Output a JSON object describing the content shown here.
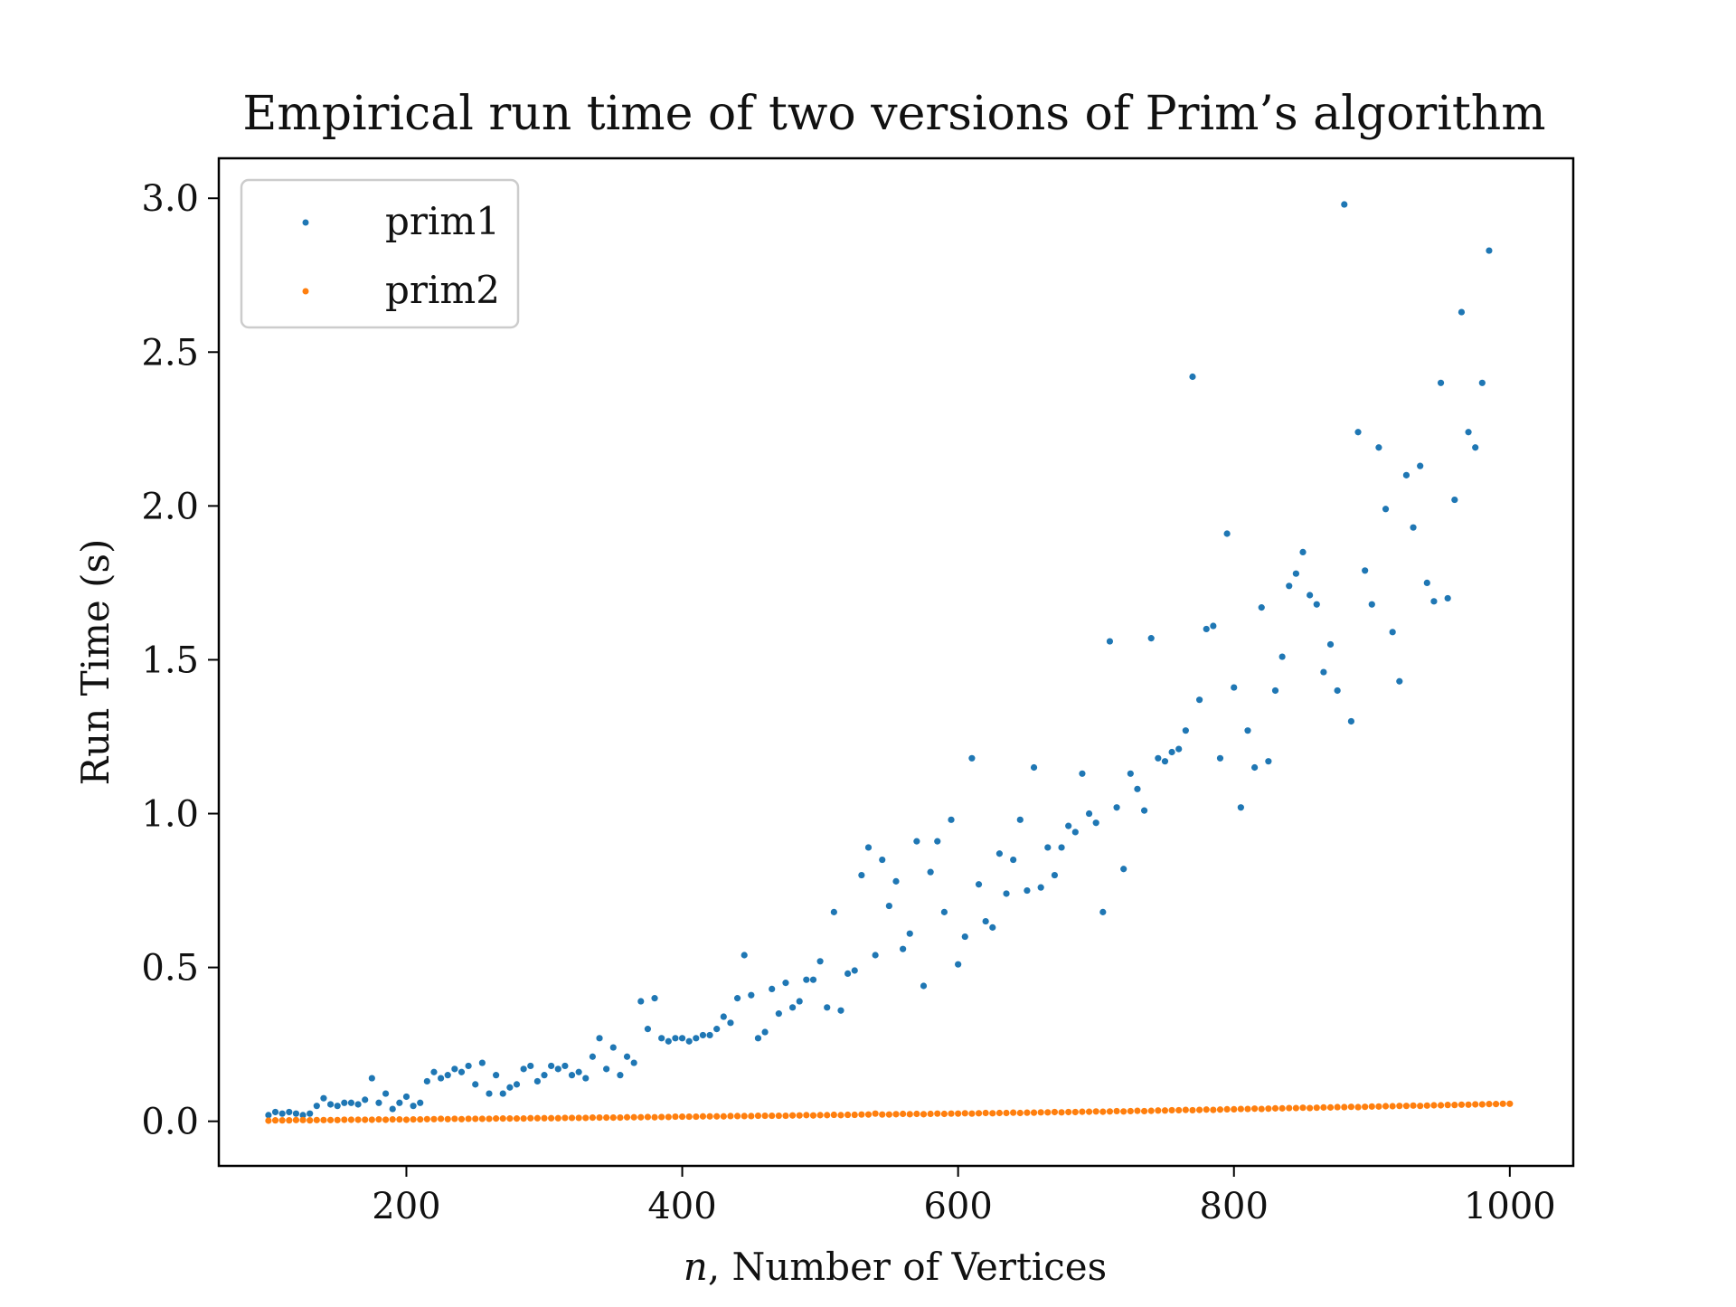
{
  "chart_data": {
    "type": "scatter",
    "title": "Empirical run time of two versions of Prim’s algorithm",
    "xlabel_var": "n",
    "xlabel_rest": ", Number of Vertices",
    "ylabel": "Run Time (s)",
    "xlim": [
      64,
      1046
    ],
    "ylim": [
      -0.145,
      3.13
    ],
    "xticks": [
      200,
      400,
      600,
      800,
      1000
    ],
    "xtick_labels": [
      "200",
      "400",
      "600",
      "800",
      "1000"
    ],
    "yticks": [
      0.0,
      0.5,
      1.0,
      1.5,
      2.0,
      2.5,
      3.0
    ],
    "ytick_labels": [
      "0.0",
      "0.5",
      "1.0",
      "1.5",
      "2.0",
      "2.5",
      "3.0"
    ],
    "grid": false,
    "legend_position": "top-left",
    "series": [
      {
        "name": "prim1",
        "color": "#1f77b4",
        "points": [
          [
            100,
            0.02
          ],
          [
            105,
            0.03
          ],
          [
            110,
            0.025
          ],
          [
            115,
            0.03
          ],
          [
            120,
            0.025
          ],
          [
            125,
            0.02
          ],
          [
            130,
            0.025
          ],
          [
            135,
            0.05
          ],
          [
            140,
            0.075
          ],
          [
            145,
            0.055
          ],
          [
            150,
            0.05
          ],
          [
            155,
            0.06
          ],
          [
            160,
            0.06
          ],
          [
            165,
            0.055
          ],
          [
            170,
            0.07
          ],
          [
            175,
            0.14
          ],
          [
            180,
            0.06
          ],
          [
            185,
            0.09
          ],
          [
            190,
            0.04
          ],
          [
            195,
            0.06
          ],
          [
            200,
            0.08
          ],
          [
            205,
            0.05
          ],
          [
            210,
            0.06
          ],
          [
            215,
            0.13
          ],
          [
            220,
            0.16
          ],
          [
            225,
            0.14
          ],
          [
            230,
            0.15
          ],
          [
            235,
            0.17
          ],
          [
            240,
            0.16
          ],
          [
            245,
            0.18
          ],
          [
            250,
            0.12
          ],
          [
            255,
            0.19
          ],
          [
            260,
            0.09
          ],
          [
            265,
            0.15
          ],
          [
            270,
            0.09
          ],
          [
            275,
            0.11
          ],
          [
            280,
            0.12
          ],
          [
            285,
            0.17
          ],
          [
            290,
            0.18
          ],
          [
            295,
            0.13
          ],
          [
            300,
            0.15
          ],
          [
            305,
            0.18
          ],
          [
            310,
            0.17
          ],
          [
            315,
            0.18
          ],
          [
            320,
            0.15
          ],
          [
            325,
            0.16
          ],
          [
            330,
            0.14
          ],
          [
            335,
            0.21
          ],
          [
            340,
            0.27
          ],
          [
            345,
            0.17
          ],
          [
            350,
            0.24
          ],
          [
            355,
            0.15
          ],
          [
            360,
            0.21
          ],
          [
            365,
            0.19
          ],
          [
            370,
            0.39
          ],
          [
            375,
            0.3
          ],
          [
            380,
            0.4
          ],
          [
            385,
            0.27
          ],
          [
            390,
            0.26
          ],
          [
            395,
            0.27
          ],
          [
            400,
            0.27
          ],
          [
            405,
            0.26
          ],
          [
            410,
            0.27
          ],
          [
            415,
            0.28
          ],
          [
            420,
            0.28
          ],
          [
            425,
            0.3
          ],
          [
            430,
            0.34
          ],
          [
            435,
            0.32
          ],
          [
            440,
            0.4
          ],
          [
            445,
            0.54
          ],
          [
            450,
            0.41
          ],
          [
            455,
            0.27
          ],
          [
            460,
            0.29
          ],
          [
            465,
            0.43
          ],
          [
            470,
            0.35
          ],
          [
            475,
            0.45
          ],
          [
            480,
            0.37
          ],
          [
            485,
            0.39
          ],
          [
            490,
            0.46
          ],
          [
            495,
            0.46
          ],
          [
            500,
            0.52
          ],
          [
            505,
            0.37
          ],
          [
            510,
            0.68
          ],
          [
            515,
            0.36
          ],
          [
            520,
            0.48
          ],
          [
            525,
            0.49
          ],
          [
            530,
            0.8
          ],
          [
            535,
            0.89
          ],
          [
            540,
            0.54
          ],
          [
            545,
            0.85
          ],
          [
            550,
            0.7
          ],
          [
            555,
            0.78
          ],
          [
            560,
            0.56
          ],
          [
            565,
            0.61
          ],
          [
            570,
            0.91
          ],
          [
            575,
            0.44
          ],
          [
            580,
            0.81
          ],
          [
            585,
            0.91
          ],
          [
            590,
            0.68
          ],
          [
            595,
            0.98
          ],
          [
            600,
            0.51
          ],
          [
            605,
            0.6
          ],
          [
            610,
            1.18
          ],
          [
            615,
            0.77
          ],
          [
            620,
            0.65
          ],
          [
            625,
            0.63
          ],
          [
            630,
            0.87
          ],
          [
            635,
            0.74
          ],
          [
            640,
            0.85
          ],
          [
            645,
            0.98
          ],
          [
            650,
            0.75
          ],
          [
            655,
            1.15
          ],
          [
            660,
            0.76
          ],
          [
            665,
            0.89
          ],
          [
            670,
            0.8
          ],
          [
            675,
            0.89
          ],
          [
            680,
            0.96
          ],
          [
            685,
            0.94
          ],
          [
            690,
            1.13
          ],
          [
            695,
            1.0
          ],
          [
            700,
            0.97
          ],
          [
            705,
            0.68
          ],
          [
            710,
            1.56
          ],
          [
            715,
            1.02
          ],
          [
            720,
            0.82
          ],
          [
            725,
            1.13
          ],
          [
            730,
            1.08
          ],
          [
            735,
            1.01
          ],
          [
            740,
            1.57
          ],
          [
            745,
            1.18
          ],
          [
            750,
            1.17
          ],
          [
            755,
            1.2
          ],
          [
            760,
            1.21
          ],
          [
            765,
            1.27
          ],
          [
            770,
            2.42
          ],
          [
            775,
            1.37
          ],
          [
            780,
            1.6
          ],
          [
            785,
            1.61
          ],
          [
            790,
            1.18
          ],
          [
            795,
            1.91
          ],
          [
            800,
            1.41
          ],
          [
            805,
            1.02
          ],
          [
            810,
            1.27
          ],
          [
            815,
            1.15
          ],
          [
            820,
            1.67
          ],
          [
            825,
            1.17
          ],
          [
            830,
            1.4
          ],
          [
            835,
            1.51
          ],
          [
            840,
            1.74
          ],
          [
            845,
            1.78
          ],
          [
            850,
            1.85
          ],
          [
            855,
            1.71
          ],
          [
            860,
            1.68
          ],
          [
            865,
            1.46
          ],
          [
            870,
            1.55
          ],
          [
            875,
            1.4
          ],
          [
            880,
            2.98
          ],
          [
            885,
            1.3
          ],
          [
            890,
            2.24
          ],
          [
            895,
            1.79
          ],
          [
            900,
            1.68
          ],
          [
            905,
            2.19
          ],
          [
            910,
            1.99
          ],
          [
            915,
            1.59
          ],
          [
            920,
            1.43
          ],
          [
            925,
            2.1
          ],
          [
            930,
            1.93
          ],
          [
            935,
            2.13
          ],
          [
            940,
            1.75
          ],
          [
            945,
            1.69
          ],
          [
            950,
            2.4
          ],
          [
            955,
            1.7
          ],
          [
            960,
            2.02
          ],
          [
            965,
            2.63
          ],
          [
            970,
            2.24
          ],
          [
            975,
            2.19
          ],
          [
            980,
            2.4
          ],
          [
            985,
            2.83
          ]
        ]
      },
      {
        "name": "prim2",
        "color": "#ff7f0e",
        "points_from": 100,
        "points_step": 5,
        "values": [
          0.002,
          0.003,
          0.003,
          0.003,
          0.004,
          0.004,
          0.003,
          0.004,
          0.004,
          0.004,
          0.004,
          0.005,
          0.005,
          0.005,
          0.005,
          0.005,
          0.006,
          0.005,
          0.006,
          0.006,
          0.005,
          0.006,
          0.006,
          0.007,
          0.007,
          0.008,
          0.007,
          0.008,
          0.007,
          0.008,
          0.008,
          0.008,
          0.008,
          0.009,
          0.009,
          0.009,
          0.009,
          0.009,
          0.01,
          0.01,
          0.01,
          0.01,
          0.01,
          0.011,
          0.011,
          0.011,
          0.011,
          0.012,
          0.012,
          0.012,
          0.012,
          0.012,
          0.013,
          0.013,
          0.013,
          0.014,
          0.013,
          0.014,
          0.014,
          0.015,
          0.015,
          0.015,
          0.015,
          0.016,
          0.016,
          0.016,
          0.016,
          0.017,
          0.017,
          0.017,
          0.017,
          0.018,
          0.018,
          0.018,
          0.018,
          0.018,
          0.019,
          0.019,
          0.02,
          0.019,
          0.02,
          0.02,
          0.021,
          0.02,
          0.021,
          0.021,
          0.022,
          0.022,
          0.025,
          0.022,
          0.022,
          0.023,
          0.024,
          0.023,
          0.024,
          0.023,
          0.024,
          0.025,
          0.024,
          0.025,
          0.025,
          0.026,
          0.025,
          0.026,
          0.027,
          0.026,
          0.027,
          0.027,
          0.028,
          0.027,
          0.028,
          0.028,
          0.029,
          0.029,
          0.03,
          0.029,
          0.03,
          0.03,
          0.031,
          0.031,
          0.032,
          0.031,
          0.032,
          0.033,
          0.032,
          0.033,
          0.034,
          0.033,
          0.034,
          0.035,
          0.035,
          0.036,
          0.036,
          0.037,
          0.036,
          0.037,
          0.038,
          0.037,
          0.038,
          0.039,
          0.039,
          0.04,
          0.04,
          0.041,
          0.04,
          0.041,
          0.042,
          0.042,
          0.043,
          0.043,
          0.044,
          0.043,
          0.044,
          0.045,
          0.045,
          0.046,
          0.046,
          0.047,
          0.046,
          0.047,
          0.048,
          0.048,
          0.049,
          0.049,
          0.05,
          0.05,
          0.051,
          0.05,
          0.051,
          0.052,
          0.052,
          0.053,
          0.053,
          0.054,
          0.054,
          0.055,
          0.055,
          0.056,
          0.056,
          0.057,
          0.057
        ]
      }
    ]
  }
}
